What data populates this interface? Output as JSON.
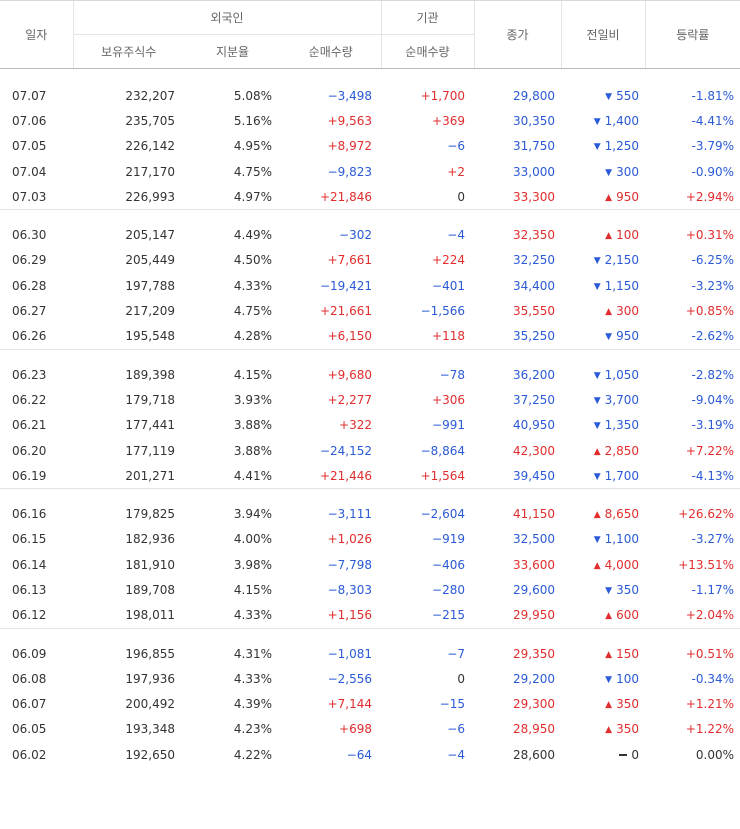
{
  "header": {
    "date": "일자",
    "foreign": "외국인",
    "institution": "기관",
    "holdings": "보유주식수",
    "ratio": "지분율",
    "foreign_net": "순매수량",
    "inst_net": "순매수량",
    "close": "종가",
    "change": "전일비",
    "rate": "등락률"
  },
  "groups": [
    [
      {
        "date": "07.07",
        "holdings": "232,207",
        "ratio": "5.08%",
        "fnet": "−3,498",
        "inet": "+1,700",
        "close": "29,800",
        "dir": "down",
        "diff": "550",
        "rate": "-1.81%"
      },
      {
        "date": "07.06",
        "holdings": "235,705",
        "ratio": "5.16%",
        "fnet": "+9,563",
        "inet": "+369",
        "close": "30,350",
        "dir": "down",
        "diff": "1,400",
        "rate": "-4.41%"
      },
      {
        "date": "07.05",
        "holdings": "226,142",
        "ratio": "4.95%",
        "fnet": "+8,972",
        "inet": "−6",
        "close": "31,750",
        "dir": "down",
        "diff": "1,250",
        "rate": "-3.79%"
      },
      {
        "date": "07.04",
        "holdings": "217,170",
        "ratio": "4.75%",
        "fnet": "−9,823",
        "inet": "+2",
        "close": "33,000",
        "dir": "down",
        "diff": "300",
        "rate": "-0.90%"
      },
      {
        "date": "07.03",
        "holdings": "226,993",
        "ratio": "4.97%",
        "fnet": "+21,846",
        "inet": "0",
        "close": "33,300",
        "dir": "up",
        "diff": "950",
        "rate": "+2.94%"
      }
    ],
    [
      {
        "date": "06.30",
        "holdings": "205,147",
        "ratio": "4.49%",
        "fnet": "−302",
        "inet": "−4",
        "close": "32,350",
        "dir": "up",
        "diff": "100",
        "rate": "+0.31%"
      },
      {
        "date": "06.29",
        "holdings": "205,449",
        "ratio": "4.50%",
        "fnet": "+7,661",
        "inet": "+224",
        "close": "32,250",
        "dir": "down",
        "diff": "2,150",
        "rate": "-6.25%"
      },
      {
        "date": "06.28",
        "holdings": "197,788",
        "ratio": "4.33%",
        "fnet": "−19,421",
        "inet": "−401",
        "close": "34,400",
        "dir": "down",
        "diff": "1,150",
        "rate": "-3.23%"
      },
      {
        "date": "06.27",
        "holdings": "217,209",
        "ratio": "4.75%",
        "fnet": "+21,661",
        "inet": "−1,566",
        "close": "35,550",
        "dir": "up",
        "diff": "300",
        "rate": "+0.85%"
      },
      {
        "date": "06.26",
        "holdings": "195,548",
        "ratio": "4.28%",
        "fnet": "+6,150",
        "inet": "+118",
        "close": "35,250",
        "dir": "down",
        "diff": "950",
        "rate": "-2.62%"
      }
    ],
    [
      {
        "date": "06.23",
        "holdings": "189,398",
        "ratio": "4.15%",
        "fnet": "+9,680",
        "inet": "−78",
        "close": "36,200",
        "dir": "down",
        "diff": "1,050",
        "rate": "-2.82%"
      },
      {
        "date": "06.22",
        "holdings": "179,718",
        "ratio": "3.93%",
        "fnet": "+2,277",
        "inet": "+306",
        "close": "37,250",
        "dir": "down",
        "diff": "3,700",
        "rate": "-9.04%"
      },
      {
        "date": "06.21",
        "holdings": "177,441",
        "ratio": "3.88%",
        "fnet": "+322",
        "inet": "−991",
        "close": "40,950",
        "dir": "down",
        "diff": "1,350",
        "rate": "-3.19%"
      },
      {
        "date": "06.20",
        "holdings": "177,119",
        "ratio": "3.88%",
        "fnet": "−24,152",
        "inet": "−8,864",
        "close": "42,300",
        "dir": "up",
        "diff": "2,850",
        "rate": "+7.22%"
      },
      {
        "date": "06.19",
        "holdings": "201,271",
        "ratio": "4.41%",
        "fnet": "+21,446",
        "inet": "+1,564",
        "close": "39,450",
        "dir": "down",
        "diff": "1,700",
        "rate": "-4.13%"
      }
    ],
    [
      {
        "date": "06.16",
        "holdings": "179,825",
        "ratio": "3.94%",
        "fnet": "−3,111",
        "inet": "−2,604",
        "close": "41,150",
        "dir": "up",
        "diff": "8,650",
        "rate": "+26.62%"
      },
      {
        "date": "06.15",
        "holdings": "182,936",
        "ratio": "4.00%",
        "fnet": "+1,026",
        "inet": "−919",
        "close": "32,500",
        "dir": "down",
        "diff": "1,100",
        "rate": "-3.27%"
      },
      {
        "date": "06.14",
        "holdings": "181,910",
        "ratio": "3.98%",
        "fnet": "−7,798",
        "inet": "−406",
        "close": "33,600",
        "dir": "up",
        "diff": "4,000",
        "rate": "+13.51%"
      },
      {
        "date": "06.13",
        "holdings": "189,708",
        "ratio": "4.15%",
        "fnet": "−8,303",
        "inet": "−280",
        "close": "29,600",
        "dir": "down",
        "diff": "350",
        "rate": "-1.17%"
      },
      {
        "date": "06.12",
        "holdings": "198,011",
        "ratio": "4.33%",
        "fnet": "+1,156",
        "inet": "−215",
        "close": "29,950",
        "dir": "up",
        "diff": "600",
        "rate": "+2.04%"
      }
    ],
    [
      {
        "date": "06.09",
        "holdings": "196,855",
        "ratio": "4.31%",
        "fnet": "−1,081",
        "inet": "−7",
        "close": "29,350",
        "dir": "up",
        "diff": "150",
        "rate": "+0.51%"
      },
      {
        "date": "06.08",
        "holdings": "197,936",
        "ratio": "4.33%",
        "fnet": "−2,556",
        "inet": "0",
        "close": "29,200",
        "dir": "down",
        "diff": "100",
        "rate": "-0.34%"
      },
      {
        "date": "06.07",
        "holdings": "200,492",
        "ratio": "4.39%",
        "fnet": "+7,144",
        "inet": "−15",
        "close": "29,300",
        "dir": "up",
        "diff": "350",
        "rate": "+1.21%"
      },
      {
        "date": "06.05",
        "holdings": "193,348",
        "ratio": "4.23%",
        "fnet": "+698",
        "inet": "−6",
        "close": "28,950",
        "dir": "up",
        "diff": "350",
        "rate": "+1.22%"
      },
      {
        "date": "06.02",
        "holdings": "192,650",
        "ratio": "4.22%",
        "fnet": "−64",
        "inet": "−4",
        "close": "28,600",
        "dir": "flat",
        "diff": "0",
        "rate": "0.00%"
      }
    ]
  ],
  "colors": {
    "up": "#e12d2d",
    "down": "#2a5ad7",
    "flat": "#333333"
  }
}
